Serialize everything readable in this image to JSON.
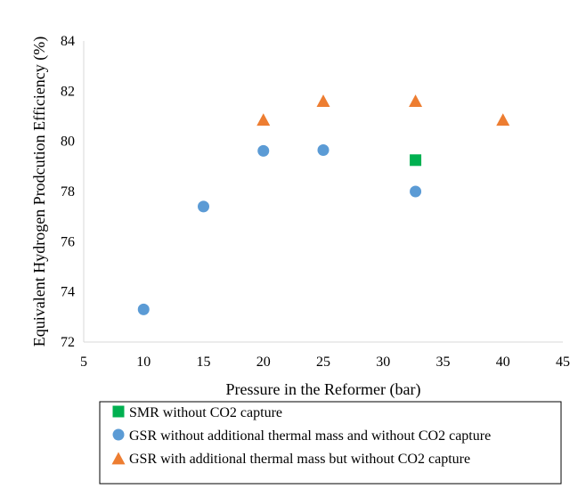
{
  "chart_data": {
    "type": "scatter",
    "xlabel": "Pressure in the Reformer (bar)",
    "ylabel": "Equivalent Hydrogen Prodcution Efficiency (%)",
    "xlim": [
      5,
      45
    ],
    "ylim": [
      72,
      84
    ],
    "xticks": [
      5,
      10,
      15,
      20,
      25,
      30,
      35,
      40,
      45
    ],
    "yticks": [
      72,
      74,
      76,
      78,
      80,
      82,
      84
    ],
    "grid": false,
    "legend_position": "bottom",
    "series": [
      {
        "name": "SMR without CO2 capture",
        "marker": "square",
        "color": "#00b050",
        "points": [
          [
            32.7,
            79.25
          ]
        ]
      },
      {
        "name": "GSR without additional thermal mass and without CO2 capture",
        "marker": "circle",
        "color": "#5b9bd5",
        "points": [
          [
            10,
            73.3
          ],
          [
            15,
            77.4
          ],
          [
            20,
            79.62
          ],
          [
            25,
            79.65
          ],
          [
            32.7,
            78.0
          ]
        ]
      },
      {
        "name": "GSR with additional thermal mass but without CO2 capture",
        "marker": "triangle",
        "color": "#ed7d31",
        "points": [
          [
            20,
            80.85
          ],
          [
            25,
            81.6
          ],
          [
            32.7,
            81.6
          ],
          [
            40,
            80.85
          ]
        ]
      }
    ]
  }
}
